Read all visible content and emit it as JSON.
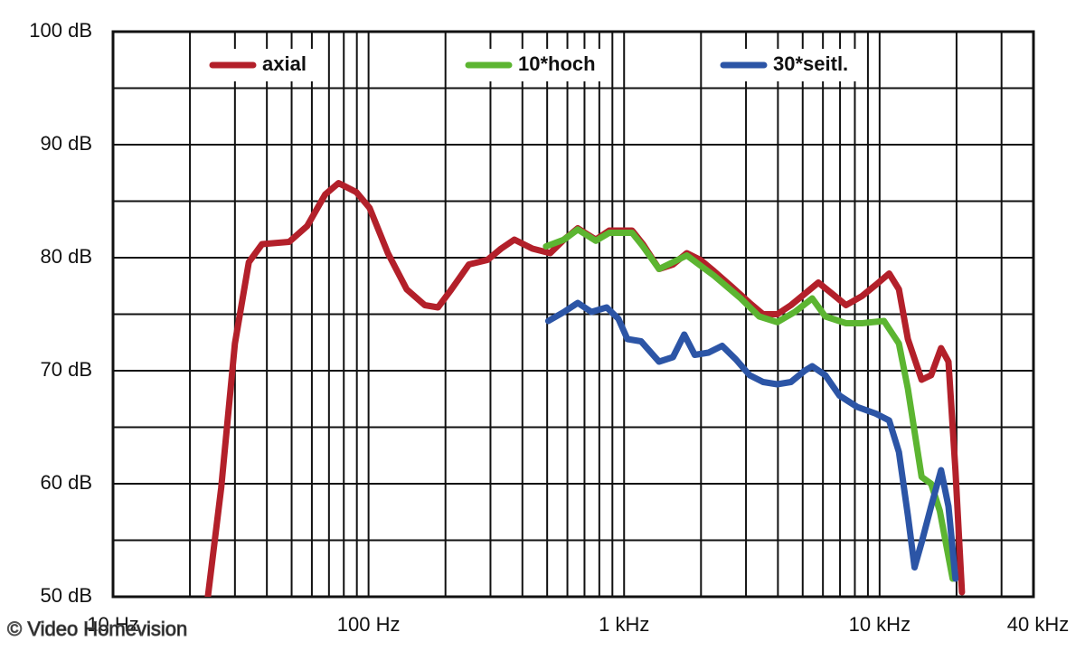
{
  "chart_data": {
    "type": "line",
    "xscale": "log",
    "xlim": [
      10,
      40000
    ],
    "ylim": [
      50,
      100
    ],
    "xticks": [
      {
        "value": 10,
        "label": "10 Hz"
      },
      {
        "value": 100,
        "label": "100 Hz"
      },
      {
        "value": 1000,
        "label": "1 kHz"
      },
      {
        "value": 10000,
        "label": "10 kHz"
      },
      {
        "value": 40000,
        "label": "40 kHz"
      }
    ],
    "xticks_minor": [
      20,
      30,
      40,
      50,
      60,
      70,
      80,
      90,
      200,
      300,
      400,
      500,
      600,
      700,
      800,
      900,
      2000,
      3000,
      4000,
      5000,
      6000,
      7000,
      8000,
      9000,
      20000,
      30000
    ],
    "yticks": [
      {
        "value": 50,
        "label": "50 dB"
      },
      {
        "value": 60,
        "label": "60 dB"
      },
      {
        "value": 70,
        "label": "70 dB"
      },
      {
        "value": 80,
        "label": "80 dB"
      },
      {
        "value": 90,
        "label": "90 dB"
      },
      {
        "value": 100,
        "label": "100 dB"
      }
    ],
    "yticks_minor": [
      55,
      65,
      75,
      85,
      95
    ],
    "grid": true,
    "legend": "top",
    "series": [
      {
        "name": "axial",
        "color": "#b3202a",
        "x": [
          23.5,
          26.5,
          30,
          34,
          38.3,
          48.9,
          57.5,
          67.7,
          76.3,
          89.6,
          101,
          119,
          141,
          166,
          187,
          211,
          247,
          292,
          330,
          372,
          438,
          514,
          582,
          659,
          775,
          875,
          1075,
          1185,
          1370,
          1553,
          1760,
          1990,
          2250,
          2650,
          3100,
          3500,
          3975,
          4500,
          5090,
          5760,
          6530,
          7390,
          8530,
          9670,
          10900,
          11900,
          12900,
          14600,
          15900,
          17400,
          18600,
          19800,
          21000
        ],
        "values": [
          50,
          59.6,
          72.4,
          79.6,
          81.2,
          81.4,
          82.8,
          85.6,
          86.6,
          85.8,
          84.4,
          80.4,
          77.2,
          75.8,
          75.6,
          77.2,
          79.4,
          79.8,
          80.8,
          81.6,
          80.8,
          80.4,
          81.6,
          82.6,
          81.6,
          82.4,
          82.4,
          81.2,
          79,
          79.4,
          80.4,
          79.8,
          78.8,
          77.4,
          76,
          75,
          75,
          75.8,
          76.8,
          77.8,
          76.8,
          75.8,
          76.6,
          77.6,
          78.6,
          77.2,
          72.8,
          69.2,
          69.6,
          72,
          70.8,
          61.2,
          50.4
        ]
      },
      {
        "name": "10*hoch",
        "color": "#5cb531",
        "x": [
          495,
          582,
          659,
          775,
          875,
          1075,
          1185,
          1370,
          1760,
          2250,
          2860,
          3380,
          3975,
          4660,
          5450,
          6130,
          7390,
          8530,
          10400,
          11900,
          12900,
          14600,
          15900,
          17200,
          19300
        ],
        "values": [
          81,
          81.6,
          82.5,
          81.5,
          82.2,
          82.2,
          81,
          79,
          80.2,
          78.4,
          76.4,
          74.8,
          74.3,
          75.2,
          76.4,
          74.8,
          74.2,
          74.2,
          74.4,
          72.4,
          68.4,
          60.6,
          60,
          57.6,
          51.6
        ]
      },
      {
        "name": "30*seitl.",
        "color": "#2c55a6",
        "x": [
          505,
          582,
          659,
          745,
          855,
          950,
          1030,
          1165,
          1370,
          1553,
          1720,
          1890,
          2140,
          2420,
          2740,
          3100,
          3500,
          3975,
          4500,
          5090,
          5450,
          6130,
          6960,
          8160,
          9670,
          10900,
          11900,
          12900,
          13700,
          14600,
          15900,
          17400,
          18600,
          19800
        ],
        "values": [
          74.4,
          75.2,
          76,
          75.2,
          75.6,
          74.6,
          72.8,
          72.6,
          70.8,
          71.2,
          73.2,
          71.4,
          71.6,
          72.2,
          71,
          69.6,
          69,
          68.8,
          69,
          70,
          70.4,
          69.6,
          67.8,
          66.8,
          66.2,
          65.6,
          62.8,
          57.2,
          52.6,
          54.8,
          58,
          61.2,
          58,
          51.6
        ]
      }
    ],
    "watermark": "© Video Homevision"
  }
}
